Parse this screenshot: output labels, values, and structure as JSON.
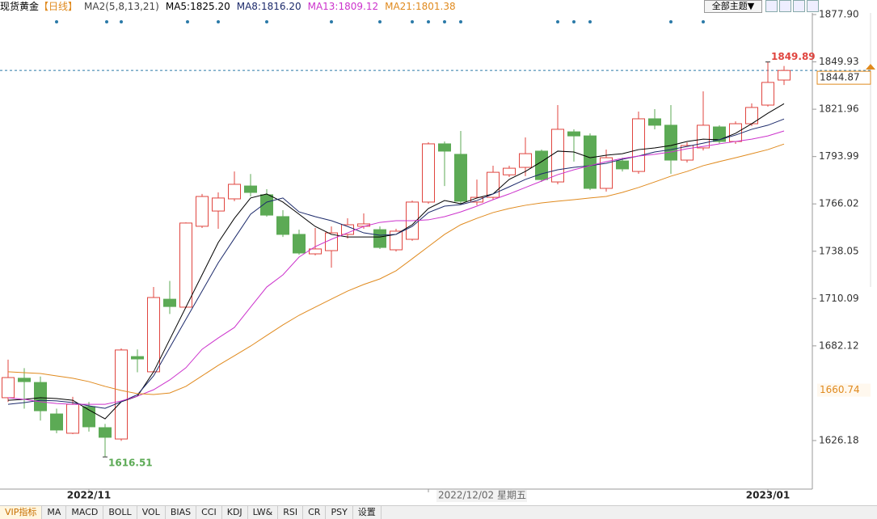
{
  "header": {
    "title": "现货黄金",
    "period": "【日线】",
    "indicator": "MA2(5,8,13,21)",
    "theme_button": "全部主题▼"
  },
  "chart_data": {
    "type": "candlestick",
    "categories": [
      null,
      null,
      null,
      null,
      null,
      "2022/11",
      null,
      null,
      null,
      null,
      null,
      null,
      null,
      null,
      null,
      null,
      null,
      null,
      null,
      null,
      null,
      null,
      null,
      null,
      null,
      null,
      "2022/12/02 星期五",
      null,
      null,
      null,
      null,
      null,
      null,
      null,
      null,
      null,
      null,
      null,
      null,
      null,
      null,
      null,
      null,
      null,
      null,
      null,
      null,
      "2023/01",
      null
    ],
    "open": [
      1651.5,
      1663,
      1660.5,
      1641.9,
      1630.5,
      1646.2,
      1633.8,
      1627.1,
      1675.8,
      1666.8,
      1709.7,
      1705.0,
      1752.8,
      1761.8,
      1769.0,
      1776.6,
      1771.4,
      1758.5,
      1748.0,
      1736.5,
      1738.4,
      1748.0,
      1752.8,
      1750.8,
      1738.9,
      1745.1,
      1767.1,
      1801.5,
      1795.3,
      1767.1,
      1769.9,
      1783.2,
      1787.6,
      1797.2,
      1779.0,
      1808.6,
      1806.2,
      1775.2,
      1791.4,
      1785.2,
      1816.3,
      1812.5,
      1791.9,
      1799.1,
      1811.5,
      1802.9,
      1813.4,
      1824.4,
      1839.2
    ],
    "high": [
      1674,
      1669,
      1664,
      1645,
      1652,
      1649,
      1636,
      1680.6,
      1680,
      1716.9,
      1720.5,
      1755.1,
      1771.9,
      1772.8,
      1785.2,
      1783.7,
      1774.7,
      1762.3,
      1750.8,
      1751.8,
      1752.7,
      1757.5,
      1760.4,
      1752.7,
      1751.3,
      1768.0,
      1802.4,
      1802.9,
      1809.1,
      1780.4,
      1788.6,
      1788.6,
      1805.3,
      1798.1,
      1824.4,
      1810.1,
      1807.7,
      1798.1,
      1793.3,
      1820.6,
      1822.0,
      1824.4,
      1802.4,
      1832.5,
      1812.5,
      1814.8,
      1825.4,
      1849.89,
      1847.5
    ],
    "low": [
      1649,
      1645,
      1638,
      1630.5,
      1630,
      1631.5,
      1616.51,
      1626,
      1666.5,
      1666.5,
      1701,
      1704.5,
      1751.8,
      1751.3,
      1767.6,
      1770.4,
      1758.5,
      1746.5,
      1736.0,
      1735.6,
      1728.3,
      1745.6,
      1751.3,
      1739.4,
      1737.9,
      1744.2,
      1766.1,
      1776.6,
      1766.1,
      1765.2,
      1768.5,
      1781.9,
      1782.4,
      1779.0,
      1777.6,
      1791.0,
      1774.2,
      1773.3,
      1785.2,
      1783.8,
      1810.1,
      1783.8,
      1790.5,
      1797.6,
      1801.5,
      1801.5,
      1812.0,
      1823.5,
      1836.3
    ],
    "close": [
      1663.4,
      1661,
      1643.8,
      1632.4,
      1647.6,
      1634.3,
      1628.1,
      1679.7,
      1674.4,
      1710.7,
      1705.4,
      1754.7,
      1770.4,
      1769.5,
      1777.6,
      1772.8,
      1759.4,
      1748.0,
      1737.0,
      1739.4,
      1748.9,
      1753.7,
      1754.2,
      1740.3,
      1749.9,
      1767.1,
      1801.5,
      1797.2,
      1767.6,
      1769.9,
      1784.7,
      1787.1,
      1795.7,
      1780.4,
      1810.1,
      1806.2,
      1775.2,
      1793.3,
      1786.7,
      1816.3,
      1812.5,
      1791.9,
      1800.5,
      1812.5,
      1802.9,
      1813.4,
      1823.0,
      1837.8,
      1844.87
    ],
    "up_color": "#e0453f",
    "down_color": "#5caa55",
    "series": [
      {
        "name": "MA5:1825.20",
        "color": "#000000",
        "values": [
          1650.0,
          1650.5,
          1651.5,
          1651.0,
          1650.0,
          1644.3,
          1639.0,
          1649.1,
          1652.4,
          1666.8,
          1685.9,
          1705.0,
          1724.1,
          1743.2,
          1757.5,
          1769.5,
          1771.9,
          1767.1,
          1759.9,
          1752.7,
          1748.0,
          1746.5,
          1746.5,
          1746.5,
          1748.0,
          1753.7,
          1763.3,
          1768.0,
          1766.1,
          1769.5,
          1771.9,
          1780.5,
          1785.2,
          1791.0,
          1797.2,
          1796.7,
          1793.3,
          1794.8,
          1795.7,
          1798.1,
          1799.1,
          1800.5,
          1802.9,
          1804.3,
          1803.9,
          1807.7,
          1813.4,
          1819.6,
          1825.2
        ]
      },
      {
        "name": "MA8:1816.20",
        "color": "#1c2a6b",
        "values": [
          1647.6,
          1648.6,
          1650.0,
          1649.6,
          1648.6,
          1646.7,
          1645.2,
          1649.1,
          1653.3,
          1664.4,
          1681.1,
          1697.8,
          1714.5,
          1731.2,
          1745.6,
          1759.9,
          1767.1,
          1769.5,
          1761.3,
          1758.5,
          1756.1,
          1752.7,
          1748.9,
          1747.5,
          1748.0,
          1752.7,
          1760.9,
          1764.7,
          1765.6,
          1768.0,
          1771.9,
          1776.1,
          1780.5,
          1783.8,
          1786.2,
          1787.6,
          1788.6,
          1790.0,
          1792.4,
          1794.3,
          1796.7,
          1798.1,
          1800.0,
          1801.9,
          1803.9,
          1806.7,
          1810.1,
          1812.5,
          1816.2
        ]
      },
      {
        "name": "MA13:1809.12",
        "color": "#cc33cc",
        "values": [
          1651.5,
          1650.5,
          1649.1,
          1648.1,
          1647.6,
          1647.6,
          1647.6,
          1649.6,
          1652.4,
          1656.2,
          1662.0,
          1669.2,
          1680.1,
          1686.8,
          1693.0,
          1705.0,
          1716.9,
          1724.1,
          1734.6,
          1740.8,
          1745.1,
          1748.9,
          1752.7,
          1755.1,
          1756.1,
          1756.1,
          1756.6,
          1758.5,
          1761.3,
          1764.7,
          1768.5,
          1771.9,
          1775.7,
          1779.5,
          1783.3,
          1786.2,
          1788.6,
          1791.0,
          1792.9,
          1794.3,
          1795.3,
          1796.7,
          1798.6,
          1800.0,
          1801.5,
          1802.9,
          1804.3,
          1806.2,
          1809.12
        ]
      },
      {
        "name": "MA21:1801.38",
        "color": "#e08a1e",
        "values": [
          1666.8,
          1666.3,
          1665.8,
          1664.4,
          1663.0,
          1661.0,
          1658.2,
          1655.8,
          1653.9,
          1653.4,
          1654.3,
          1658.2,
          1664.4,
          1670.6,
          1676.3,
          1682.0,
          1688.3,
          1694.5,
          1700.2,
          1705.0,
          1709.8,
          1714.5,
          1718.4,
          1721.7,
          1726.5,
          1733.6,
          1740.8,
          1748.0,
          1753.7,
          1757.5,
          1760.9,
          1763.3,
          1765.2,
          1766.6,
          1767.6,
          1768.5,
          1769.5,
          1770.4,
          1772.8,
          1775.7,
          1779.0,
          1782.4,
          1785.2,
          1788.6,
          1791.0,
          1793.3,
          1795.7,
          1798.1,
          1801.38
        ]
      }
    ],
    "ylim": [
      1597.5,
      1886.5
    ],
    "yticks": [
      {
        "value": 1877.9,
        "label": "1877.90"
      },
      1849.93,
      1821.96,
      1793.99,
      1766.02,
      1738.05,
      1710.09,
      1682.12,
      1626.18
    ],
    "last_price": 1844.87,
    "marker_price": 1660.74,
    "high_label": 1849.89,
    "low_label": 1616.51
  },
  "tabs": [
    "VIP指标",
    "MA",
    "MACD",
    "BOLL",
    "VOL",
    "BIAS",
    "CCI",
    "KDJ",
    "LW&",
    "RSI",
    "CR",
    "PSY",
    "设置"
  ]
}
